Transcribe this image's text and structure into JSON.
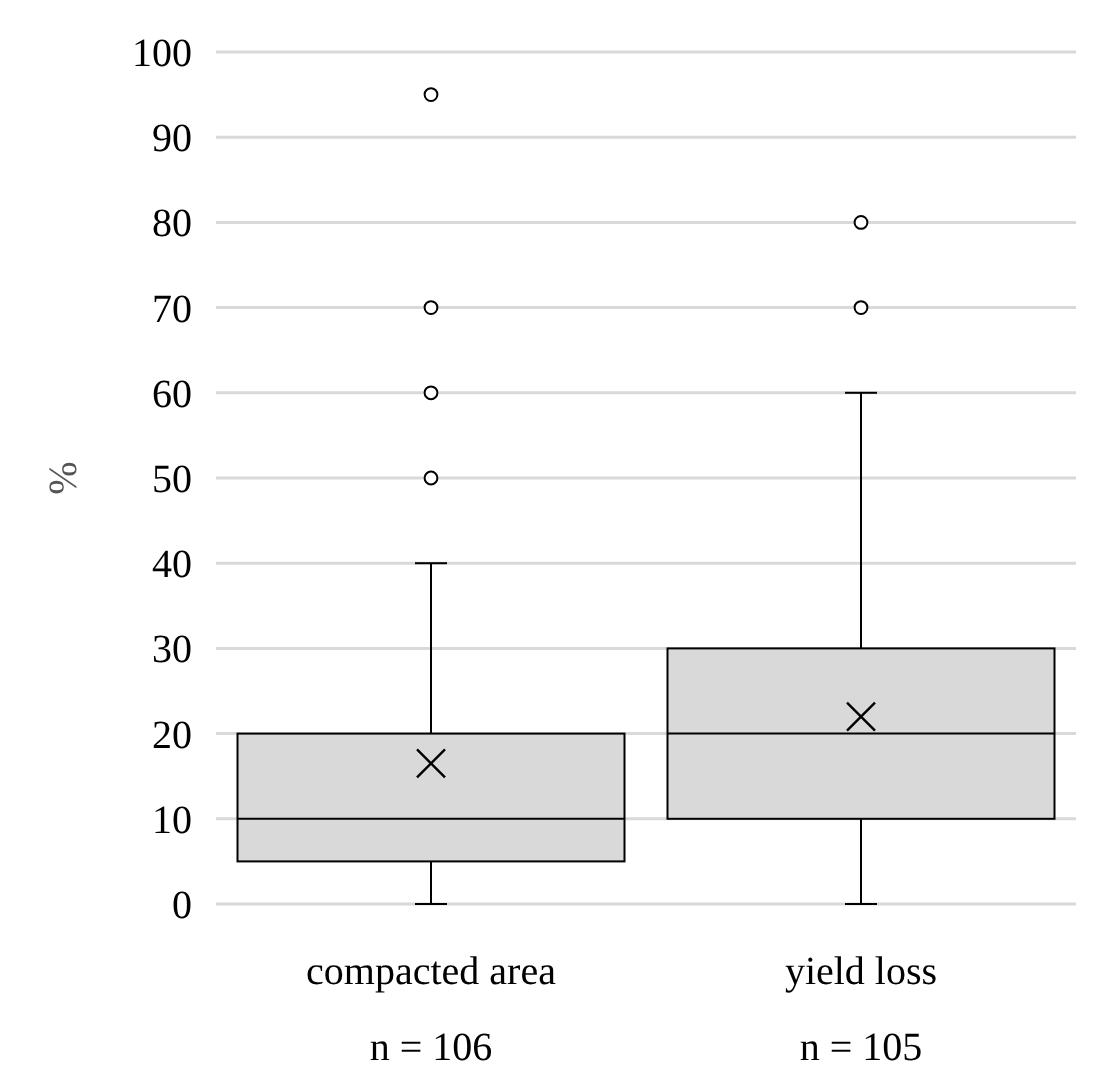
{
  "chart_data": {
    "type": "box",
    "ylabel": "%",
    "categories": [
      "compacted area",
      "yield loss"
    ],
    "boxes": [
      {
        "low": 0,
        "q1": 5,
        "median": 10,
        "q3": 20,
        "high": 40,
        "mean": 16.5,
        "outliers": [
          50,
          60,
          70,
          95
        ]
      },
      {
        "low": 0,
        "q1": 10,
        "median": 20,
        "q3": 30,
        "high": 60,
        "mean": 22,
        "outliers": [
          70,
          80
        ]
      }
    ],
    "color": "#d9d9d9",
    "ylim": [
      0,
      100
    ],
    "yticks": [
      0,
      10,
      20,
      30,
      40,
      50,
      60,
      70,
      80,
      90,
      100
    ],
    "grid": "y",
    "marker": "cross",
    "annotations": [
      "n = 106",
      "n = 105"
    ]
  }
}
